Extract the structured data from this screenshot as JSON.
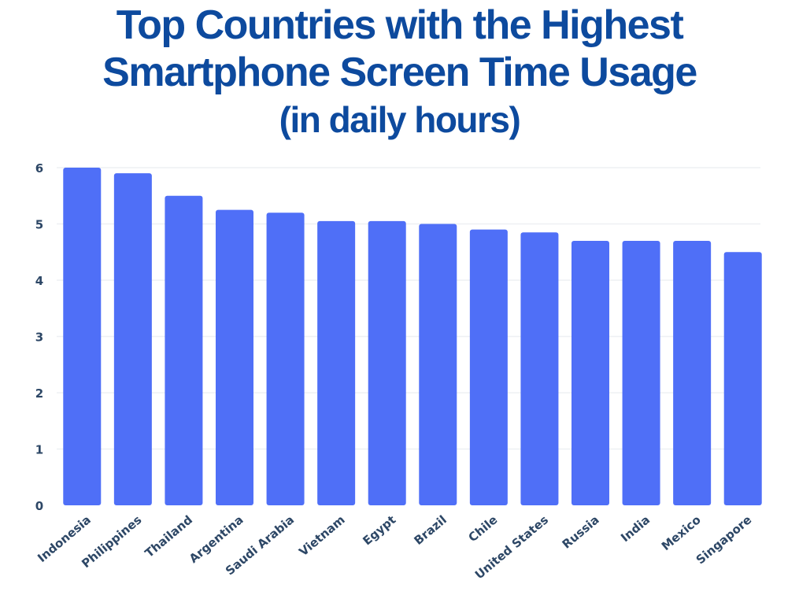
{
  "chart_data": {
    "type": "bar",
    "title_lines": [
      "Top Countries with the Highest",
      "Smartphone Screen Time Usage",
      "(in daily hours)"
    ],
    "categories": [
      "Indonesia",
      "Philippines",
      "Thailand",
      "Argentina",
      "Saudi Arabia",
      "Vietnam",
      "Egypt",
      "Brazil",
      "Chile",
      "United States",
      "Russia",
      "India",
      "Mexico",
      "Singapore"
    ],
    "values": [
      6.0,
      5.9,
      5.5,
      5.25,
      5.2,
      5.05,
      5.05,
      5.0,
      4.9,
      4.85,
      4.7,
      4.7,
      4.7,
      4.5
    ],
    "xlabel": "",
    "ylabel": "",
    "ylim": [
      0,
      6
    ],
    "yticks": [
      0,
      1,
      2,
      3,
      4,
      5,
      6
    ],
    "grid": true,
    "bar_color": "#4f6ff7",
    "title_color": "#0d4a9e"
  }
}
